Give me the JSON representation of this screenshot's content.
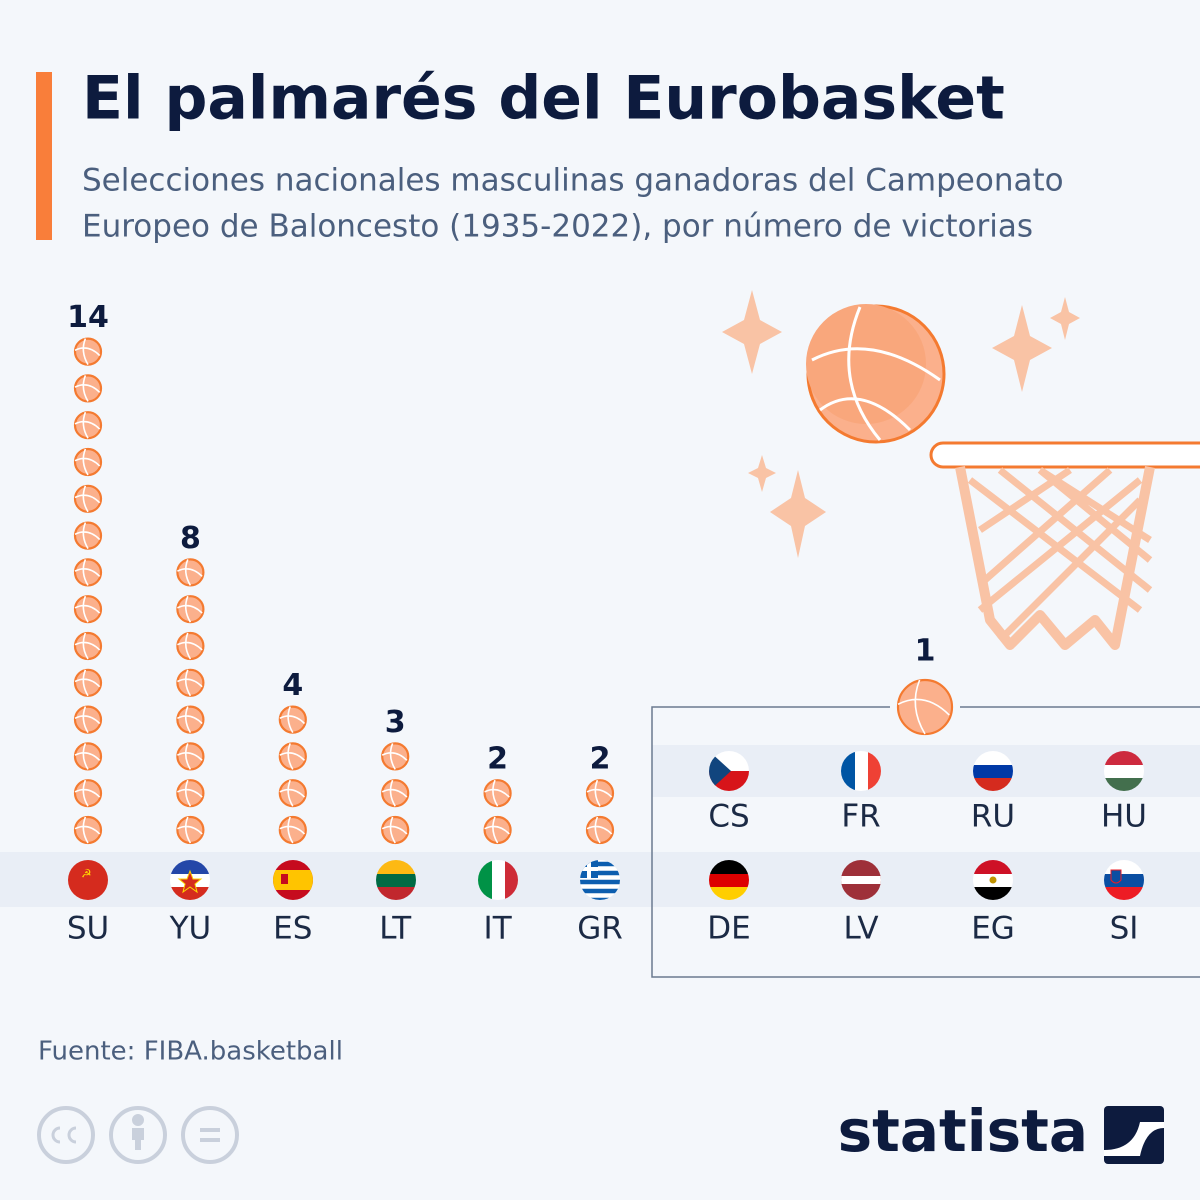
{
  "chart_data": {
    "type": "pictogram",
    "title": "El palmarés del Eurobasket",
    "subtitle": [
      "Selecciones nacionales masculinas ganadoras del Campeonato",
      "Europeo de Baloncesto (1935-2022), por número de victorias"
    ],
    "categories": [
      "SU",
      "YU",
      "ES",
      "LT",
      "IT",
      "GR"
    ],
    "values": [
      14,
      8,
      4,
      3,
      2,
      2
    ],
    "group": {
      "value": 1,
      "categories": [
        "CS",
        "FR",
        "RU",
        "HU",
        "DE",
        "LV",
        "EG",
        "SI"
      ]
    },
    "color": "#f47a30",
    "source": "Fuente: FIBA.basketball",
    "brand": "statista"
  }
}
